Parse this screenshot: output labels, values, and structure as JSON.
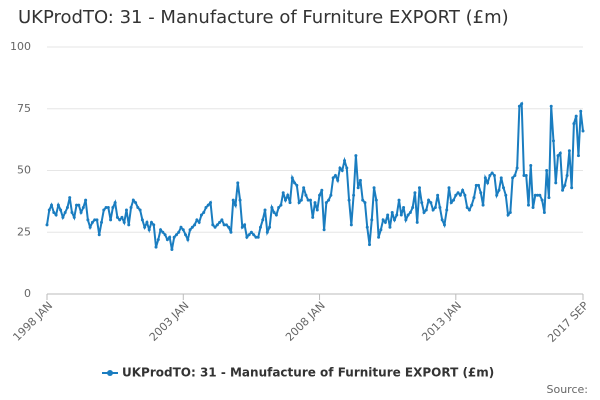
{
  "chart_data": {
    "type": "line",
    "title": "UKProdTO: 31 - Manufacture of Furniture EXPORT (£m)",
    "source": "Source:",
    "categories": [
      "1998 JAN",
      null,
      null,
      null,
      null,
      null,
      null,
      null,
      null,
      null,
      null,
      null,
      null,
      null,
      null,
      null,
      null,
      null,
      null,
      null,
      null,
      null,
      null,
      null,
      null,
      null,
      null,
      null,
      null,
      null,
      null,
      null,
      null,
      null,
      null,
      null,
      null,
      null,
      null,
      null,
      null,
      null,
      null,
      null,
      null,
      null,
      null,
      null,
      null,
      null,
      null,
      null,
      null,
      null,
      null,
      null,
      null,
      null,
      null,
      null,
      "2003 JAN",
      null,
      null,
      null,
      null,
      null,
      null,
      null,
      null,
      null,
      null,
      null,
      null,
      null,
      null,
      null,
      null,
      null,
      null,
      null,
      null,
      null,
      null,
      null,
      null,
      null,
      null,
      null,
      null,
      null,
      null,
      null,
      null,
      null,
      null,
      null,
      null,
      null,
      null,
      null,
      null,
      null,
      null,
      null,
      null,
      null,
      null,
      null,
      null,
      null,
      null,
      null,
      null,
      null,
      null,
      null,
      null,
      null,
      null,
      null,
      "2008 JAN",
      null,
      null,
      null,
      null,
      null,
      null,
      null,
      null,
      null,
      null,
      null,
      null,
      null,
      null,
      null,
      null,
      null,
      null,
      null,
      null,
      null,
      null,
      null,
      null,
      null,
      null,
      null,
      null,
      null,
      null,
      null,
      null,
      null,
      null,
      null,
      null,
      null,
      null,
      null,
      null,
      null,
      null,
      null,
      null,
      null,
      null,
      null,
      null,
      null,
      null,
      null,
      null,
      null,
      null,
      null,
      null,
      null,
      null,
      null,
      "2013 JAN",
      null,
      null,
      null,
      null,
      null,
      null,
      null,
      null,
      null,
      null,
      null,
      null,
      null,
      null,
      null,
      null,
      null,
      null,
      null,
      null,
      null,
      null,
      null,
      null,
      null,
      null,
      null,
      null,
      null,
      null,
      null,
      null,
      null,
      null,
      null,
      null,
      null,
      null,
      null,
      null,
      null,
      null,
      null,
      null,
      null,
      null,
      null,
      null,
      null,
      null,
      null,
      null,
      null,
      null,
      null,
      "2017 SEP"
    ],
    "series": [
      {
        "name": "UKProdTO: 31 - Manufacture of Furniture EXPORT (£m)",
        "color": "#1a7dc0",
        "values": [
          28,
          34,
          36,
          33,
          32,
          36,
          34,
          31,
          33,
          35,
          39,
          33,
          31,
          36,
          36,
          33,
          35,
          38,
          30,
          27,
          29,
          30,
          30,
          24,
          29,
          34,
          35,
          35,
          30,
          35,
          37,
          31,
          30,
          31,
          29,
          34,
          28,
          35,
          38,
          37,
          35,
          34,
          30,
          27,
          29,
          26,
          29,
          28,
          19,
          22,
          26,
          25,
          24,
          22,
          23,
          18,
          23,
          24,
          25,
          27,
          26,
          24,
          22,
          26,
          27,
          28,
          30,
          29,
          32,
          33,
          35,
          36,
          37,
          28,
          27,
          28,
          29,
          30,
          28,
          28,
          27,
          25,
          38,
          36,
          45,
          38,
          27,
          28,
          23,
          24,
          25,
          24,
          23,
          23,
          27,
          30,
          34,
          25,
          27,
          35,
          33,
          32,
          35,
          36,
          41,
          38,
          40,
          37,
          47,
          45,
          44,
          37,
          38,
          43,
          40,
          38,
          38,
          31,
          37,
          34,
          40,
          42,
          26,
          37,
          38,
          40,
          47,
          48,
          46,
          51,
          50,
          54,
          51,
          38,
          28,
          40,
          56,
          43,
          46,
          38,
          37,
          27,
          20,
          30,
          43,
          38,
          23,
          26,
          30,
          29,
          32,
          27,
          33,
          30,
          32,
          38,
          32,
          35,
          30,
          32,
          33,
          35,
          41,
          29,
          43,
          37,
          33,
          34,
          38,
          37,
          34,
          35,
          40,
          35,
          30,
          28,
          34,
          43,
          37,
          38,
          40,
          41,
          40,
          42,
          40,
          35,
          34,
          36,
          39,
          44,
          44,
          41,
          36,
          47,
          45,
          48,
          49,
          48,
          40,
          42,
          47,
          43,
          40,
          32,
          33,
          47,
          48,
          51,
          76,
          77,
          48,
          48,
          36,
          52,
          35,
          40,
          40,
          40,
          38,
          33,
          50,
          39,
          76,
          62,
          45,
          56,
          57,
          42,
          44,
          48,
          58,
          43,
          69,
          72,
          56,
          74,
          66
        ]
      }
    ],
    "ylim": [
      0,
      100
    ],
    "yticks": [
      0,
      25,
      50,
      75,
      100
    ],
    "grid": true
  }
}
